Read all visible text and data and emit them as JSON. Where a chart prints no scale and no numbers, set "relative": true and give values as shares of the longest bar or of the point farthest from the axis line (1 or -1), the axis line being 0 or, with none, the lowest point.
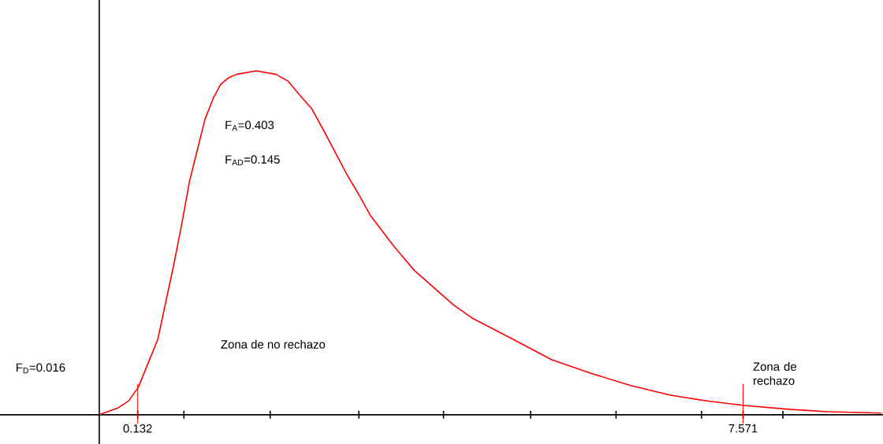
{
  "chart_data": {
    "type": "line",
    "relative": true,
    "x": [
      -0.34,
      -0.11,
      0.02,
      0.14,
      0.26,
      0.38,
      0.47,
      0.57,
      0.67,
      0.77,
      0.96,
      1.06,
      1.15,
      1.25,
      1.35,
      1.59,
      1.83,
      1.98,
      2.12,
      2.27,
      2.41,
      2.7,
      2.85,
      2.99,
      3.28,
      3.53,
      3.77,
      4.01,
      4.25,
      4.74,
      5.22,
      5.71,
      6.19,
      6.68,
      7.16,
      7.58,
      8.13,
      8.61,
      9.27
    ],
    "series": [
      {
        "color": "#ff0000",
        "values": [
          0,
          0.02,
          0.04,
          0.08,
          0.15,
          0.22,
          0.32,
          0.43,
          0.55,
          0.68,
          0.86,
          0.92,
          0.96,
          0.98,
          0.99,
          1.0,
          0.99,
          0.97,
          0.93,
          0.89,
          0.83,
          0.7,
          0.64,
          0.58,
          0.49,
          0.42,
          0.37,
          0.32,
          0.28,
          0.22,
          0.16,
          0.12,
          0.085,
          0.057,
          0.039,
          0.027,
          0.016,
          0.009,
          0.005
        ]
      }
    ],
    "xlim": [
      -1.56,
      9.29
    ],
    "xticks": [
      {
        "value": 0.132,
        "label": "0.132"
      },
      {
        "value": 0.7,
        "label": null
      },
      {
        "value": 1.76,
        "label": null
      },
      {
        "value": 2.85,
        "label": null
      },
      {
        "value": 3.89,
        "label": null
      },
      {
        "value": 4.96,
        "label": null
      },
      {
        "value": 6.01,
        "label": null
      },
      {
        "value": 7.06,
        "label": null
      },
      {
        "value": 7.571,
        "label": "7.571"
      },
      {
        "value": 8.06,
        "label": null
      }
    ],
    "ref_lines": [
      {
        "axis": "x",
        "value": -0.34,
        "color": "#000000"
      },
      {
        "axis": "x",
        "value": 0.132,
        "color": "#ff0000"
      },
      {
        "axis": "x",
        "value": 7.571,
        "color": "#ff0000"
      }
    ],
    "annotations": [
      "F$_{A}$=0.403",
      "F$_{AD}$=0.145",
      "F$_{D}$=0.016",
      "Zona de no rechazo",
      "Zona de rechazo"
    ]
  }
}
